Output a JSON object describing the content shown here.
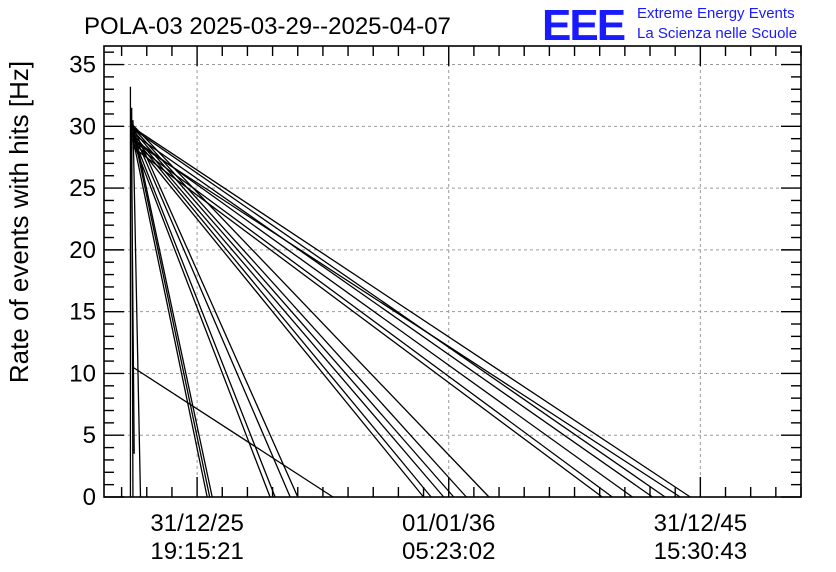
{
  "title": "POLA-03 2025-03-29--2025-04-07",
  "logo": {
    "letters": "EEE",
    "line1": "Extreme Energy Events",
    "line2": "La Scienza nelle Scuole",
    "color": "#1a1aff"
  },
  "chart_data": {
    "type": "line",
    "title": "POLA-03 2025-03-29--2025-04-07",
    "ylabel": "Rate of events with hits [Hz]",
    "xlabel": "",
    "ylim": [
      0,
      36.5
    ],
    "yticks": [
      0,
      5,
      10,
      15,
      20,
      25,
      30,
      35
    ],
    "xlim": [
      -0.37,
      2.4
    ],
    "xticks": [
      {
        "value": 0,
        "date": "31/12/25",
        "time": "19:15:21"
      },
      {
        "value": 1,
        "date": "01/01/36",
        "time": "05:23:02"
      },
      {
        "value": 2,
        "date": "31/12/45",
        "time": "15:30:43"
      }
    ],
    "x_units": "decade ticks (fraction between labelled ticks)",
    "grid": true,
    "line_color": "#000000",
    "segments": [
      {
        "from": [
          -0.265,
          33.2
        ],
        "to": [
          -0.265,
          0
        ]
      },
      {
        "from": [
          -0.26,
          31.5
        ],
        "to": [
          -0.255,
          0
        ]
      },
      {
        "from": [
          -0.262,
          31.0
        ],
        "to": [
          -0.25,
          3.5
        ]
      },
      {
        "from": [
          -0.255,
          30.5
        ],
        "to": [
          -0.225,
          0
        ]
      },
      {
        "from": [
          -0.26,
          30.2
        ],
        "to": [
          1.16,
          0
        ]
      },
      {
        "from": [
          -0.26,
          30.0
        ],
        "to": [
          1.07,
          0
        ]
      },
      {
        "from": [
          -0.26,
          29.8
        ],
        "to": [
          1.02,
          0
        ]
      },
      {
        "from": [
          -0.26,
          29.5
        ],
        "to": [
          0.98,
          0
        ]
      },
      {
        "from": [
          -0.26,
          29.3
        ],
        "to": [
          0.93,
          0
        ]
      },
      {
        "from": [
          -0.26,
          29.0
        ],
        "to": [
          0.9,
          0
        ]
      },
      {
        "from": [
          -0.255,
          30.0
        ],
        "to": [
          0.4,
          0
        ]
      },
      {
        "from": [
          -0.255,
          29.6
        ],
        "to": [
          0.37,
          0
        ]
      },
      {
        "from": [
          -0.255,
          29.2
        ],
        "to": [
          0.31,
          0
        ]
      },
      {
        "from": [
          -0.255,
          28.8
        ],
        "to": [
          0.29,
          0
        ]
      },
      {
        "from": [
          -0.255,
          30.1
        ],
        "to": [
          0.06,
          0
        ]
      },
      {
        "from": [
          -0.255,
          29.7
        ],
        "to": [
          0.05,
          0
        ]
      },
      {
        "from": [
          -0.255,
          29.0
        ],
        "to": [
          0.04,
          0
        ]
      },
      {
        "from": [
          -0.255,
          10.5
        ],
        "to": [
          0.54,
          0
        ]
      },
      {
        "from": [
          -0.255,
          29.8
        ],
        "to": [
          1.86,
          0
        ]
      },
      {
        "from": [
          -0.255,
          29.4
        ],
        "to": [
          1.81,
          0
        ]
      },
      {
        "from": [
          -0.255,
          29.0
        ],
        "to": [
          1.73,
          0
        ]
      },
      {
        "from": [
          -0.255,
          28.6
        ],
        "to": [
          1.65,
          0
        ]
      },
      {
        "from": [
          -0.255,
          29.9
        ],
        "to": [
          1.96,
          0
        ]
      },
      {
        "from": [
          -0.255,
          28.8
        ],
        "to": [
          1.92,
          0
        ]
      },
      {
        "from": [
          -0.255,
          28.3
        ],
        "to": [
          1.61,
          0
        ]
      }
    ]
  }
}
